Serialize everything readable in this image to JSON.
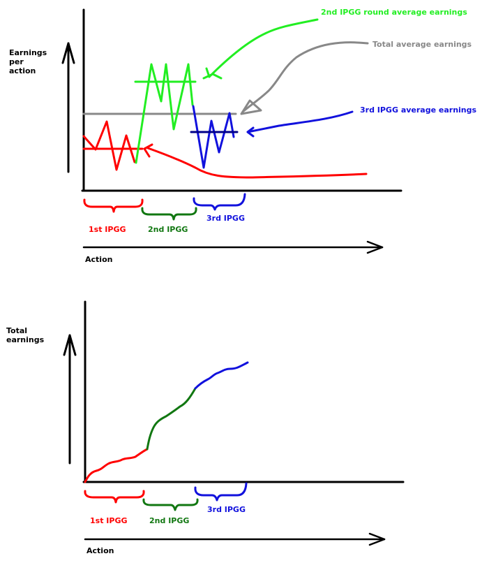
{
  "top_diagram": {
    "y_axis_label_lines": [
      "Earnings",
      "per",
      "action"
    ],
    "x_axis_label": "Action",
    "phase_labels": [
      "1st IPGG",
      "2nd IPGG",
      "3rd IPGG"
    ],
    "annotations": {
      "round2_average": "2nd IPGG round average earnings",
      "total_average": "Total average earnings",
      "round3_average": "3rd IPGG average earnings"
    }
  },
  "bottom_diagram": {
    "y_axis_label_lines": [
      "Total",
      "earnings"
    ],
    "x_axis_label": "Action",
    "phase_labels": [
      "1st IPGG",
      "2nd IPGG",
      "3rd IPGG"
    ]
  },
  "colors": {
    "round1": "#ff0000",
    "round2_top": "#22ee22",
    "round2_bottom": "#117711",
    "round3": "#1111dd",
    "total_average": "#888888",
    "axis": "#000000",
    "phase2_label": "#117711"
  }
}
